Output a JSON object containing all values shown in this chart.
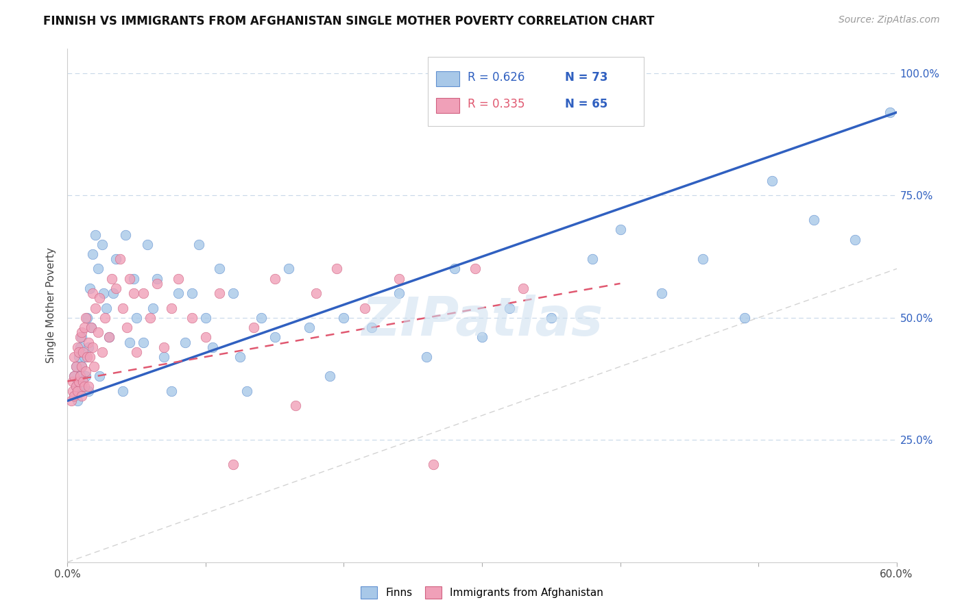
{
  "title": "FINNISH VS IMMIGRANTS FROM AFGHANISTAN SINGLE MOTHER POVERTY CORRELATION CHART",
  "source": "Source: ZipAtlas.com",
  "ylabel": "Single Mother Poverty",
  "xlim": [
    0.0,
    0.6
  ],
  "ylim": [
    0.0,
    1.05
  ],
  "xticks": [
    0.0,
    0.1,
    0.2,
    0.3,
    0.4,
    0.5,
    0.6
  ],
  "xticklabels": [
    "0.0%",
    "",
    "",
    "",
    "",
    "",
    "60.0%"
  ],
  "yticks": [
    0.25,
    0.5,
    0.75,
    1.0
  ],
  "yticklabels": [
    "25.0%",
    "50.0%",
    "75.0%",
    "100.0%"
  ],
  "watermark": "ZIPatlas",
  "legend_r1": "R = 0.626",
  "legend_n1": "N = 73",
  "legend_r2": "R = 0.335",
  "legend_n2": "N = 65",
  "color_finns": "#a8c8e8",
  "color_afghanistan": "#f0a0b8",
  "color_edge_finns": "#6090d0",
  "color_edge_afghanistan": "#d06080",
  "color_line_finns": "#3060c0",
  "color_line_afghanistan": "#e05870",
  "color_diagonal": "#c8c8c8",
  "background": "#ffffff",
  "grid_color": "#c8d8e8",
  "finns_x": [
    0.005,
    0.005,
    0.006,
    0.006,
    0.007,
    0.007,
    0.008,
    0.008,
    0.009,
    0.009,
    0.01,
    0.01,
    0.01,
    0.012,
    0.013,
    0.014,
    0.015,
    0.015,
    0.016,
    0.017,
    0.018,
    0.02,
    0.022,
    0.023,
    0.025,
    0.026,
    0.028,
    0.03,
    0.033,
    0.035,
    0.04,
    0.042,
    0.045,
    0.048,
    0.05,
    0.055,
    0.058,
    0.062,
    0.065,
    0.07,
    0.075,
    0.08,
    0.085,
    0.09,
    0.095,
    0.1,
    0.105,
    0.11,
    0.12,
    0.125,
    0.13,
    0.14,
    0.15,
    0.16,
    0.175,
    0.19,
    0.2,
    0.22,
    0.24,
    0.26,
    0.28,
    0.3,
    0.32,
    0.35,
    0.38,
    0.4,
    0.43,
    0.46,
    0.49,
    0.51,
    0.54,
    0.57,
    0.595
  ],
  "finns_y": [
    0.34,
    0.38,
    0.36,
    0.4,
    0.33,
    0.37,
    0.35,
    0.42,
    0.38,
    0.44,
    0.36,
    0.4,
    0.46,
    0.42,
    0.38,
    0.5,
    0.35,
    0.44,
    0.56,
    0.48,
    0.63,
    0.67,
    0.6,
    0.38,
    0.65,
    0.55,
    0.52,
    0.46,
    0.55,
    0.62,
    0.35,
    0.67,
    0.45,
    0.58,
    0.5,
    0.45,
    0.65,
    0.52,
    0.58,
    0.42,
    0.35,
    0.55,
    0.45,
    0.55,
    0.65,
    0.5,
    0.44,
    0.6,
    0.55,
    0.42,
    0.35,
    0.5,
    0.46,
    0.6,
    0.48,
    0.38,
    0.5,
    0.48,
    0.55,
    0.42,
    0.6,
    0.46,
    0.52,
    0.5,
    0.62,
    0.68,
    0.55,
    0.62,
    0.5,
    0.78,
    0.7,
    0.66,
    0.92
  ],
  "afghan_x": [
    0.003,
    0.004,
    0.004,
    0.005,
    0.005,
    0.005,
    0.006,
    0.006,
    0.007,
    0.007,
    0.008,
    0.008,
    0.009,
    0.009,
    0.01,
    0.01,
    0.01,
    0.011,
    0.011,
    0.012,
    0.012,
    0.013,
    0.013,
    0.014,
    0.015,
    0.015,
    0.016,
    0.017,
    0.018,
    0.018,
    0.019,
    0.02,
    0.022,
    0.023,
    0.025,
    0.027,
    0.03,
    0.032,
    0.035,
    0.038,
    0.04,
    0.043,
    0.045,
    0.048,
    0.05,
    0.055,
    0.06,
    0.065,
    0.07,
    0.075,
    0.08,
    0.09,
    0.1,
    0.11,
    0.12,
    0.135,
    0.15,
    0.165,
    0.18,
    0.195,
    0.215,
    0.24,
    0.265,
    0.295,
    0.33
  ],
  "afghan_y": [
    0.33,
    0.35,
    0.37,
    0.34,
    0.38,
    0.42,
    0.36,
    0.4,
    0.35,
    0.44,
    0.37,
    0.43,
    0.38,
    0.46,
    0.34,
    0.4,
    0.47,
    0.37,
    0.43,
    0.36,
    0.48,
    0.39,
    0.5,
    0.42,
    0.36,
    0.45,
    0.42,
    0.48,
    0.44,
    0.55,
    0.4,
    0.52,
    0.47,
    0.54,
    0.43,
    0.5,
    0.46,
    0.58,
    0.56,
    0.62,
    0.52,
    0.48,
    0.58,
    0.55,
    0.43,
    0.55,
    0.5,
    0.57,
    0.44,
    0.52,
    0.58,
    0.5,
    0.46,
    0.55,
    0.2,
    0.48,
    0.58,
    0.32,
    0.55,
    0.6,
    0.52,
    0.58,
    0.2,
    0.6,
    0.56
  ],
  "finn_line_x0": 0.0,
  "finn_line_y0": 0.33,
  "finn_line_x1": 0.6,
  "finn_line_y1": 0.92,
  "afghan_line_x0": 0.0,
  "afghan_line_y0": 0.37,
  "afghan_line_x1": 0.4,
  "afghan_line_y1": 0.57
}
